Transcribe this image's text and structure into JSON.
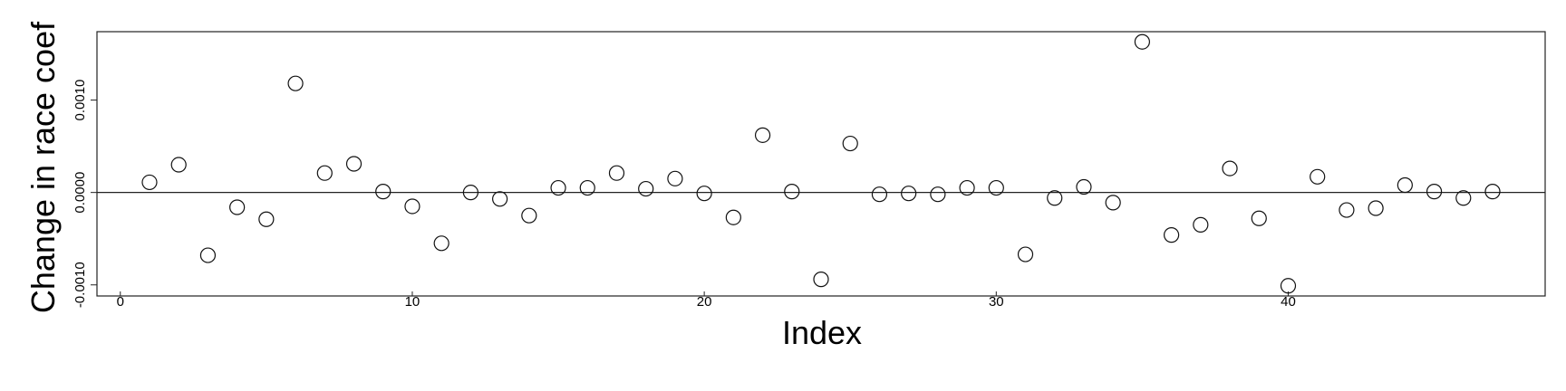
{
  "chart_data": {
    "type": "scatter",
    "title": "",
    "xlabel": "Index",
    "ylabel": "Change in race coef",
    "xlim": [
      -0.8,
      48.8
    ],
    "ylim": [
      -0.00112,
      0.00174
    ],
    "x_ticks": [
      0,
      10,
      20,
      30,
      40
    ],
    "x_tick_labels": [
      "0",
      "10",
      "20",
      "30",
      "40"
    ],
    "y_ticks": [
      -0.001,
      0.0,
      0.001
    ],
    "y_tick_labels": [
      "-0.0010",
      "0.0000",
      "0.0010"
    ],
    "reference_line": 0,
    "grid": false,
    "legend": "none",
    "marker": "open-circle",
    "x": [
      1,
      2,
      3,
      4,
      5,
      6,
      7,
      8,
      9,
      10,
      11,
      12,
      13,
      14,
      15,
      16,
      17,
      18,
      19,
      20,
      21,
      22,
      23,
      24,
      25,
      26,
      27,
      28,
      29,
      30,
      31,
      32,
      33,
      34,
      35,
      36,
      37,
      38,
      39,
      40,
      41,
      42,
      43,
      44,
      45,
      46,
      47
    ],
    "y": [
      0.00011,
      0.0003,
      -0.00068,
      -0.00016,
      -0.00029,
      0.00118,
      0.00021,
      0.00031,
      1e-05,
      -0.00015,
      -0.00055,
      0.0,
      -7e-05,
      -0.00025,
      5e-05,
      5e-05,
      0.00021,
      4e-05,
      0.00015,
      -1e-05,
      -0.00027,
      0.00062,
      1e-05,
      -0.00094,
      0.00053,
      -2e-05,
      -1e-05,
      -2e-05,
      5e-05,
      5e-05,
      -0.00067,
      -6e-05,
      6e-05,
      -0.00011,
      0.00163,
      -0.00046,
      -0.00035,
      0.00026,
      -0.00028,
      -0.00101,
      0.00017,
      -0.00019,
      -0.00017,
      8e-05,
      1e-05,
      -6e-05,
      1e-05
    ]
  }
}
